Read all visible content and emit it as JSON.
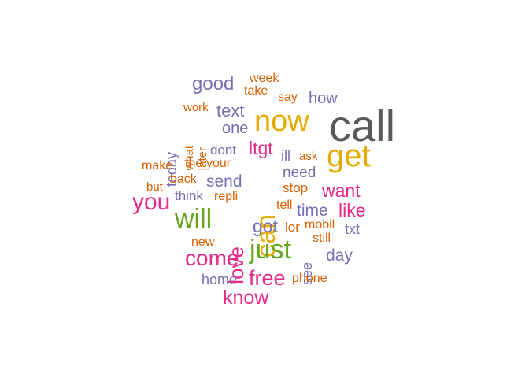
{
  "palette": {
    "dark_gray": "#595959",
    "orange": "#d95f02",
    "gold": "#e6ab02",
    "slate": "#7570b3",
    "magenta": "#e7298a",
    "green": "#66a61e"
  },
  "words": [
    {
      "text": "call",
      "color": "dark_gray",
      "vertical": false
    },
    {
      "text": "now",
      "color": "gold",
      "vertical": false
    },
    {
      "text": "get",
      "color": "gold",
      "vertical": false
    },
    {
      "text": "can",
      "color": "gold",
      "vertical": true
    },
    {
      "text": "will",
      "color": "green",
      "vertical": false
    },
    {
      "text": "just",
      "color": "green",
      "vertical": false
    },
    {
      "text": "you",
      "color": "magenta",
      "vertical": false
    },
    {
      "text": "come",
      "color": "magenta",
      "vertical": false
    },
    {
      "text": "love",
      "color": "magenta",
      "vertical": true
    },
    {
      "text": "free",
      "color": "magenta",
      "vertical": false
    },
    {
      "text": "know",
      "color": "magenta",
      "vertical": false
    },
    {
      "text": "want",
      "color": "magenta",
      "vertical": false
    },
    {
      "text": "like",
      "color": "magenta",
      "vertical": false
    },
    {
      "text": "ltgt",
      "color": "magenta",
      "vertical": false
    },
    {
      "text": "good",
      "color": "slate",
      "vertical": false
    },
    {
      "text": "text",
      "color": "slate",
      "vertical": false
    },
    {
      "text": "one",
      "color": "slate",
      "vertical": false
    },
    {
      "text": "how",
      "color": "slate",
      "vertical": false
    },
    {
      "text": "send",
      "color": "slate",
      "vertical": false
    },
    {
      "text": "time",
      "color": "slate",
      "vertical": false
    },
    {
      "text": "got",
      "color": "slate",
      "vertical": false
    },
    {
      "text": "day",
      "color": "slate",
      "vertical": false
    },
    {
      "text": "need",
      "color": "slate",
      "vertical": false
    },
    {
      "text": "ill",
      "color": "slate",
      "vertical": false
    },
    {
      "text": "dont",
      "color": "slate",
      "vertical": false
    },
    {
      "text": "think",
      "color": "slate",
      "vertical": false
    },
    {
      "text": "home",
      "color": "slate",
      "vertical": false
    },
    {
      "text": "txt",
      "color": "slate",
      "vertical": false
    },
    {
      "text": "today",
      "color": "slate",
      "vertical": true
    },
    {
      "text": "see",
      "color": "slate",
      "vertical": true
    },
    {
      "text": "week",
      "color": "orange",
      "vertical": false
    },
    {
      "text": "take",
      "color": "orange",
      "vertical": false
    },
    {
      "text": "say",
      "color": "orange",
      "vertical": false
    },
    {
      "text": "work",
      "color": "orange",
      "vertical": false
    },
    {
      "text": "what",
      "color": "orange",
      "vertical": true
    },
    {
      "text": "later",
      "color": "orange",
      "vertical": true
    },
    {
      "text": "make",
      "color": "orange",
      "vertical": false
    },
    {
      "text": "the",
      "color": "orange",
      "vertical": false
    },
    {
      "text": "your",
      "color": "orange",
      "vertical": false
    },
    {
      "text": "back",
      "color": "orange",
      "vertical": false
    },
    {
      "text": "but",
      "color": "orange",
      "vertical": false
    },
    {
      "text": "repli",
      "color": "orange",
      "vertical": false
    },
    {
      "text": "ask",
      "color": "orange",
      "vertical": false
    },
    {
      "text": "stop",
      "color": "orange",
      "vertical": false
    },
    {
      "text": "tell",
      "color": "orange",
      "vertical": false
    },
    {
      "text": "lor",
      "color": "orange",
      "vertical": false
    },
    {
      "text": "mobil",
      "color": "orange",
      "vertical": false
    },
    {
      "text": "still",
      "color": "orange",
      "vertical": false
    },
    {
      "text": "new",
      "color": "orange",
      "vertical": false
    },
    {
      "text": "phone",
      "color": "orange",
      "vertical": false
    }
  ]
}
